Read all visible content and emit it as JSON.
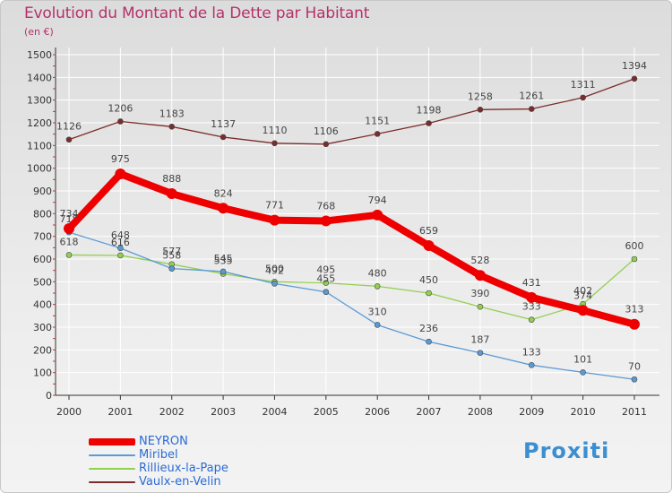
{
  "header": {
    "title": "Evolution du Montant de la Dette par Habitant",
    "subtitle": "(en €)"
  },
  "colors": {
    "title": "#b5316a",
    "grid": "#ffffff",
    "axis": "#333333",
    "legend_text": "#2a6bd6"
  },
  "logo": {
    "text": "Proxiti"
  },
  "chart_data": {
    "type": "line",
    "x": [
      "2000",
      "2001",
      "2002",
      "2003",
      "2004",
      "2005",
      "2006",
      "2007",
      "2008",
      "2009",
      "2010",
      "2011"
    ],
    "yticks": [
      0,
      100,
      200,
      300,
      400,
      500,
      600,
      700,
      800,
      900,
      1000,
      1100,
      1200,
      1300,
      1400,
      1500
    ],
    "ylim": [
      0,
      1500
    ],
    "grid": true,
    "legend_position": "bottom-left",
    "series": [
      {
        "name": "NEYRON",
        "color": "#ee0000",
        "values": [
          734,
          975,
          888,
          824,
          771,
          768,
          794,
          659,
          528,
          431,
          374,
          313
        ]
      },
      {
        "name": "Miribel",
        "color": "#5b9bd5",
        "values": [
          718,
          648,
          558,
          545,
          492,
          455,
          310,
          236,
          187,
          133,
          101,
          70
        ]
      },
      {
        "name": "Rillieux-la-Pape",
        "color": "#92d050",
        "values": [
          618,
          616,
          577,
          535,
          500,
          495,
          480,
          450,
          390,
          333,
          402,
          600
        ]
      },
      {
        "name": "Vaulx-en-Velin",
        "color": "#7b2c2c",
        "values": [
          1126,
          1206,
          1183,
          1137,
          1110,
          1106,
          1151,
          1198,
          1258,
          1261,
          1311,
          1394
        ]
      }
    ]
  }
}
